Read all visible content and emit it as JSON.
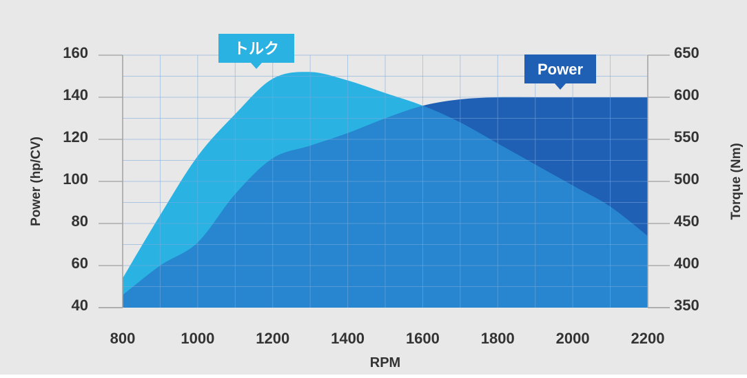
{
  "colors": {
    "background": "#e8e8e8",
    "grid": "#7aa9dc",
    "axis": "#a0a0a0",
    "torque_area": "#2ab3e2",
    "power_area": "#2786cf",
    "power_tail": "#1f5fb4",
    "text": "#333333",
    "callout_torque": "#2ab3e2",
    "callout_power": "#1f5fb4",
    "callout_text": "#ffffff"
  },
  "chart_data": {
    "type": "area",
    "xlabel": "RPM",
    "ylabel_left": "Power (hp/CV)",
    "ylabel_right": "Torque (Nm)",
    "xlim": [
      800,
      2200
    ],
    "ylim_left": [
      40,
      160
    ],
    "ylim_right": [
      350,
      650
    ],
    "x_ticks": [
      800,
      1000,
      1200,
      1400,
      1600,
      1800,
      2000,
      2200
    ],
    "y_ticks_left": [
      40,
      60,
      80,
      100,
      120,
      140,
      160
    ],
    "y_ticks_right": [
      350,
      400,
      450,
      500,
      550,
      600,
      650
    ],
    "grid": true,
    "series": [
      {
        "name": "トルク",
        "axis": "right",
        "x": [
          800,
          900,
          1000,
          1100,
          1200,
          1300,
          1400,
          1500,
          1600,
          1700,
          1800,
          1900,
          2000,
          2100,
          2200
        ],
        "values": [
          385,
          460,
          530,
          580,
          622,
          630,
          620,
          605,
          590,
          570,
          545,
          520,
          495,
          470,
          435
        ]
      },
      {
        "name": "Power",
        "axis": "left",
        "x": [
          800,
          900,
          1000,
          1100,
          1200,
          1300,
          1400,
          1500,
          1600,
          1700,
          1800,
          1900,
          2000,
          2100,
          2200
        ],
        "values": [
          46,
          60,
          71,
          94,
          111,
          117,
          123,
          130,
          136,
          139,
          140,
          140,
          140,
          140,
          140
        ]
      }
    ],
    "callouts": [
      {
        "series": "トルク",
        "text": "トルク"
      },
      {
        "series": "Power",
        "text": "Power"
      }
    ]
  }
}
